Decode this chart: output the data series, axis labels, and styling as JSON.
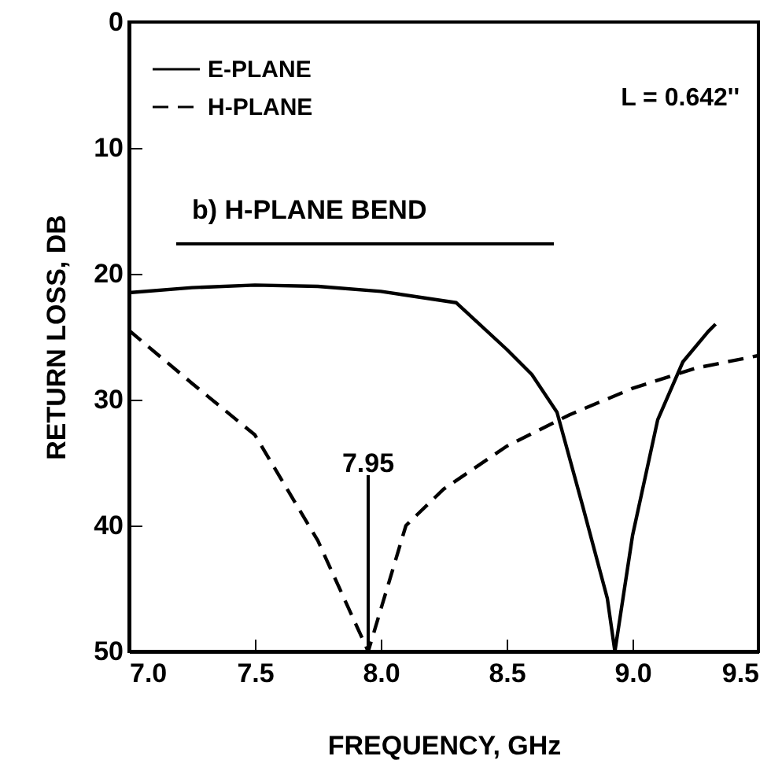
{
  "chart_data": {
    "type": "line",
    "xlabel": "FREQUENCY, GHz",
    "ylabel": "RETURN LOSS, DB",
    "xlim": [
      7.0,
      9.5
    ],
    "ylim": [
      50,
      0
    ],
    "xticks": [
      {
        "value": 7,
        "label": "7.0"
      },
      {
        "value": 7.5,
        "label": "7.5"
      },
      {
        "value": 8,
        "label": "8.0"
      },
      {
        "value": 8.5,
        "label": "8.5"
      },
      {
        "value": 9,
        "label": "9.0"
      },
      {
        "value": 9.5,
        "label": "9.5"
      }
    ],
    "yticks": [
      0,
      10,
      20,
      30,
      40,
      50
    ],
    "grid": false,
    "legend": "top left",
    "marker": "none",
    "annotations": [
      "L = 0.642''",
      "b) H-PLANE BEND",
      {
        "text": "7.95",
        "x": 7.95,
        "y": 50
      }
    ],
    "series": [
      {
        "name": "E-PLANE",
        "color": "#000000",
        "line_style": "solid",
        "x": [
          7.0,
          7.25,
          7.5,
          7.75,
          8.0,
          8.3,
          8.5,
          8.6,
          8.7,
          8.8,
          8.9,
          8.93,
          9.0,
          9.1,
          9.2,
          9.3,
          9.33
        ],
        "values": [
          21.5,
          21.1,
          20.9,
          21.0,
          21.4,
          22.3,
          26,
          28,
          31,
          38.3,
          45.8,
          50,
          40.8,
          31.6,
          27,
          24.6,
          24
        ]
      },
      {
        "name": "H-PLANE",
        "color": "#000000",
        "line_style": "dashed",
        "x": [
          7.0,
          7.25,
          7.5,
          7.75,
          7.95,
          8.1,
          8.25,
          8.5,
          8.75,
          9.0,
          9.25,
          9.5
        ],
        "values": [
          24.5,
          28.7,
          32.8,
          41.2,
          50,
          40,
          37.1,
          33.7,
          31.2,
          29.1,
          27.5,
          26.5
        ]
      }
    ]
  }
}
